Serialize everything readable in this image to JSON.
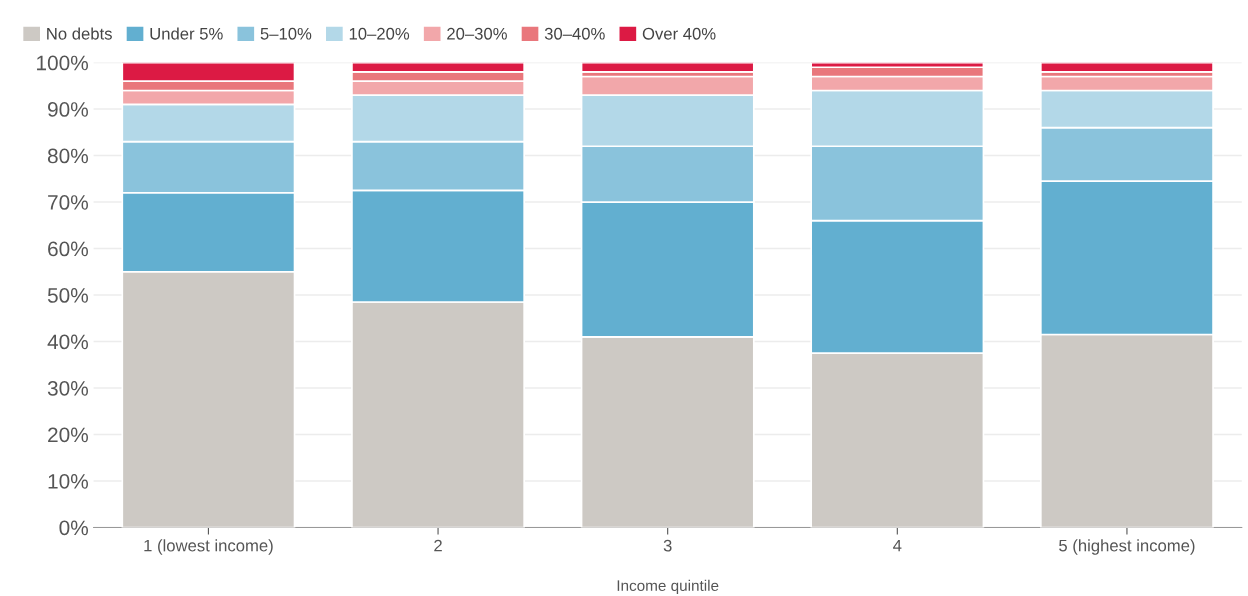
{
  "chart_data": {
    "type": "bar",
    "stacked": true,
    "xlabel": "Income quintile",
    "categories": [
      "1 (lowest income)",
      "2",
      "3",
      "4",
      "5 (highest income)"
    ],
    "series": [
      {
        "name": "No debts",
        "color": "#cdc9c4",
        "values": [
          55,
          48.5,
          41,
          37.5,
          41.5
        ]
      },
      {
        "name": "Under 5%",
        "color": "#62afd0",
        "values": [
          17,
          24,
          29,
          28.5,
          33
        ]
      },
      {
        "name": "5–10%",
        "color": "#8ac3dc",
        "values": [
          11,
          10.5,
          12,
          16,
          11.5
        ]
      },
      {
        "name": "10–20%",
        "color": "#b3d8e8",
        "values": [
          8,
          10,
          11,
          12,
          8
        ]
      },
      {
        "name": "20–30%",
        "color": "#f2a7aa",
        "values": [
          3,
          3,
          4,
          3,
          3
        ]
      },
      {
        "name": "30–40%",
        "color": "#e9777c",
        "values": [
          2,
          2,
          1,
          2,
          1
        ]
      },
      {
        "name": "Over 40%",
        "color": "#dc1a44",
        "values": [
          4,
          2,
          2,
          1,
          2
        ]
      }
    ],
    "ylim": [
      0,
      100
    ],
    "yticks": [
      {
        "value": 0,
        "label": "0%"
      },
      {
        "value": 10,
        "label": "10%"
      },
      {
        "value": 20,
        "label": "20%"
      },
      {
        "value": 30,
        "label": "30%"
      },
      {
        "value": 40,
        "label": "40%"
      },
      {
        "value": 50,
        "label": "50%"
      },
      {
        "value": 60,
        "label": "60%"
      },
      {
        "value": 70,
        "label": "70%"
      },
      {
        "value": 80,
        "label": "80%"
      },
      {
        "value": 90,
        "label": "90%"
      },
      {
        "value": 100,
        "label": "100%"
      }
    ],
    "grid": "y",
    "legend": "top left"
  }
}
